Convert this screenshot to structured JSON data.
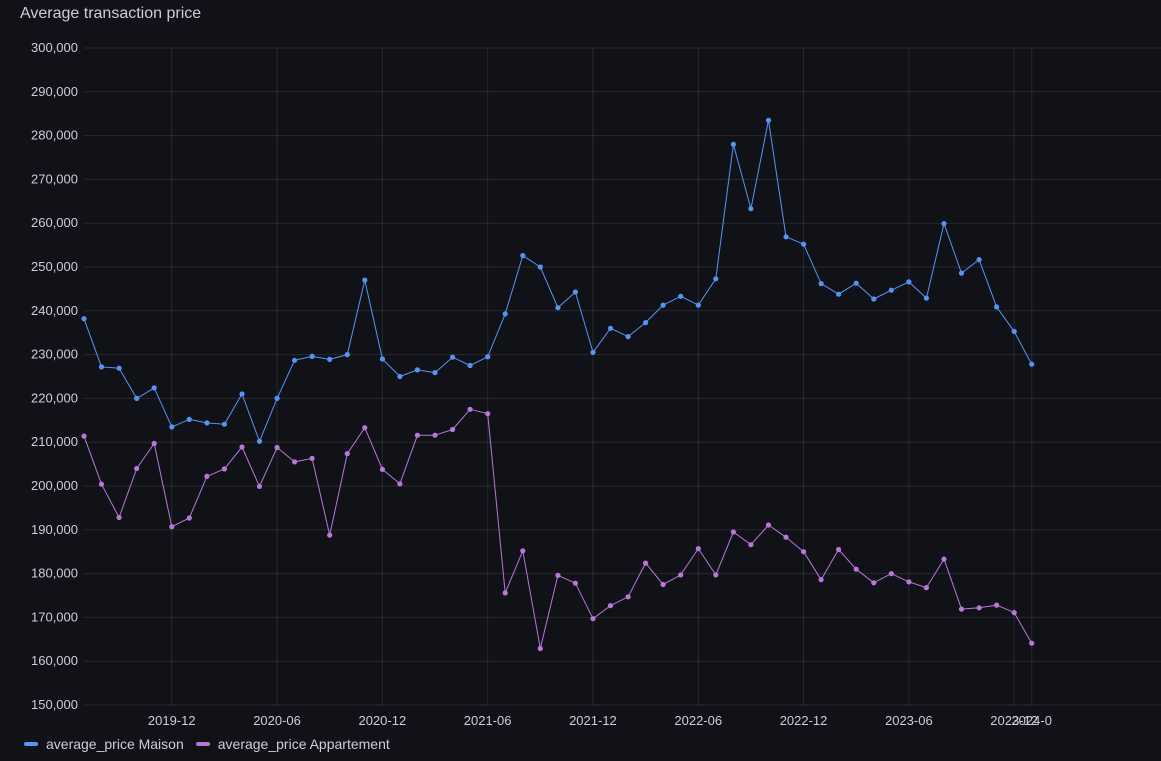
{
  "panel": {
    "title": "Average transaction price"
  },
  "chart_data": {
    "type": "line",
    "title": "Average transaction price",
    "xlabel": "",
    "ylabel": "",
    "ylim": [
      150000,
      300000
    ],
    "yticks": [
      150000,
      160000,
      170000,
      180000,
      190000,
      200000,
      210000,
      220000,
      230000,
      240000,
      250000,
      260000,
      270000,
      280000,
      290000,
      300000
    ],
    "ytick_labels": [
      "150,000",
      "160,000",
      "170,000",
      "180,000",
      "190,000",
      "200,000",
      "210,000",
      "220,000",
      "230,000",
      "240,000",
      "250,000",
      "260,000",
      "270,000",
      "280,000",
      "290,000",
      "300,000"
    ],
    "xrange": [
      "2019-07",
      "2024-01"
    ],
    "xticks": [
      "2019-12",
      "2020-06",
      "2020-12",
      "2021-06",
      "2021-12",
      "2022-06",
      "2022-12",
      "2023-06",
      "2023-12",
      "2024-01"
    ],
    "xtick_labels": [
      "2019-12",
      "2020-06",
      "2020-12",
      "2021-06",
      "2021-12",
      "2022-06",
      "2022-12",
      "2023-06",
      "2023-12",
      "2024-0"
    ],
    "grid": true,
    "legend_position": "bottom-left",
    "x": [
      "2019-07",
      "2019-08",
      "2019-09",
      "2019-10",
      "2019-11",
      "2019-12",
      "2020-01",
      "2020-02",
      "2020-03",
      "2020-04",
      "2020-05",
      "2020-06",
      "2020-07",
      "2020-08",
      "2020-09",
      "2020-10",
      "2020-11",
      "2020-12",
      "2021-01",
      "2021-02",
      "2021-03",
      "2021-04",
      "2021-05",
      "2021-06",
      "2021-07",
      "2021-08",
      "2021-09",
      "2021-10",
      "2021-11",
      "2021-12",
      "2022-01",
      "2022-02",
      "2022-03",
      "2022-04",
      "2022-05",
      "2022-06",
      "2022-07",
      "2022-08",
      "2022-09",
      "2022-10",
      "2022-11",
      "2022-12",
      "2023-01",
      "2023-02",
      "2023-03",
      "2023-04",
      "2023-05",
      "2023-06",
      "2023-07",
      "2023-08",
      "2023-09",
      "2023-10",
      "2023-11",
      "2023-12",
      "2024-01"
    ],
    "series": [
      {
        "name": "average_price Maison",
        "color": "#5794f2",
        "values": [
          238200,
          227200,
          226900,
          220000,
          222400,
          213500,
          215200,
          214400,
          214100,
          221000,
          210200,
          220000,
          228700,
          229600,
          228900,
          230000,
          247000,
          229000,
          225000,
          226500,
          225900,
          229400,
          227500,
          229500,
          239300,
          252600,
          250000,
          240700,
          244300,
          230500,
          236000,
          234100,
          237300,
          241300,
          243300,
          241300,
          247300,
          278000,
          263300,
          283500,
          256900,
          255200,
          246200,
          243800,
          246300,
          242700,
          244700,
          246600,
          242900,
          259900,
          248600,
          251700,
          240900,
          235300,
          227800
        ]
      },
      {
        "name": "average_price Appartement",
        "color": "#b877d9",
        "values": [
          211400,
          200400,
          192800,
          204000,
          209700,
          190700,
          192700,
          202200,
          203900,
          208900,
          199900,
          208800,
          205500,
          206300,
          188800,
          207400,
          213300,
          203800,
          200500,
          211600,
          211600,
          212900,
          217500,
          216500,
          175600,
          185200,
          162900,
          179600,
          177800,
          169700,
          172700,
          174700,
          182400,
          177500,
          179700,
          185700,
          179700,
          189500,
          186600,
          191100,
          188300,
          185000,
          178600,
          185500,
          181000,
          177900,
          180000,
          178100,
          176800,
          183300,
          171900,
          172200,
          172800,
          171100,
          164100
        ]
      }
    ]
  },
  "legend": {
    "items": [
      {
        "label": "average_price Maison",
        "color": "#5794f2"
      },
      {
        "label": "average_price Appartement",
        "color": "#b877d9"
      }
    ]
  }
}
